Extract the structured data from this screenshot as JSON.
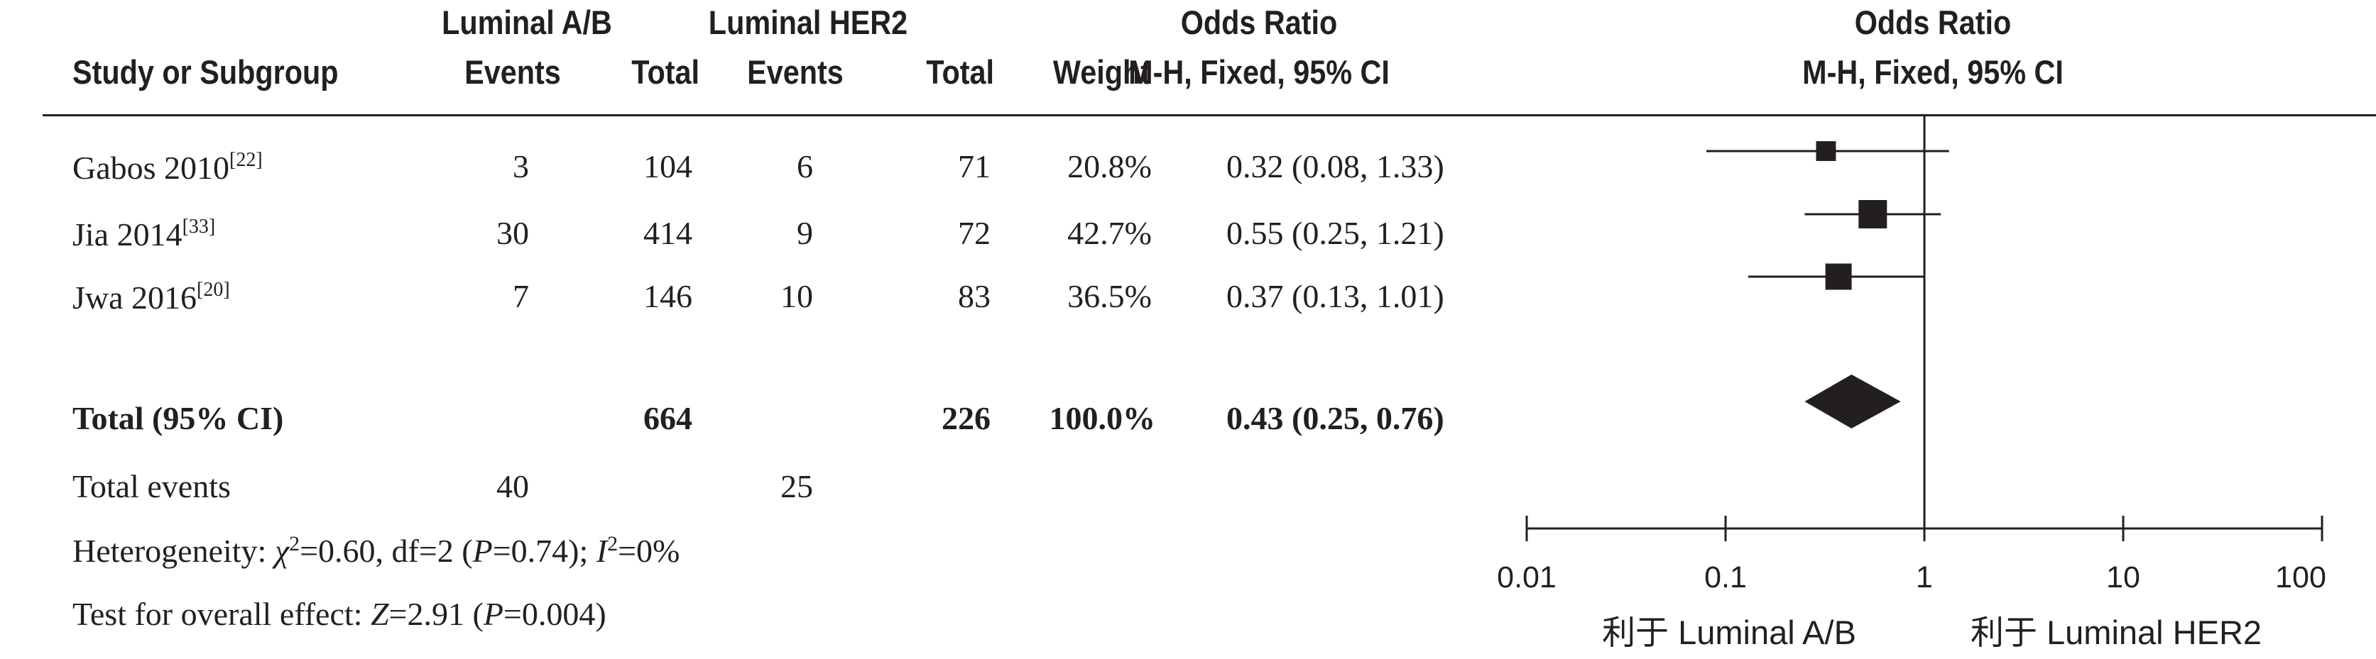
{
  "headers": {
    "group1": "Luminal A/B",
    "group2": "Luminal HER2",
    "study_col": "Study or Subgroup",
    "events": "Events",
    "total": "Total",
    "weight": "Weight",
    "or_title": "Odds Ratio",
    "or_method": "M-H, Fixed, 95% CI",
    "plot_title": "Odds Ratio",
    "plot_method": "M-H, Fixed, 95% CI"
  },
  "studies": [
    {
      "name": "Gabos 2010",
      "ref": "[22]",
      "events1": "3",
      "total1": "104",
      "events2": "6",
      "total2": "71",
      "weight": "20.8%",
      "ci_text": "0.32 (0.08, 1.33)"
    },
    {
      "name": "Jia 2014",
      "ref": "[33]",
      "events1": "30",
      "total1": "414",
      "events2": "9",
      "total2": "72",
      "weight": "42.7%",
      "ci_text": "0.55 (0.25, 1.21)"
    },
    {
      "name": "Jwa 2016",
      "ref": "[20]",
      "events1": "7",
      "total1": "146",
      "events2": "10",
      "total2": "83",
      "weight": "36.5%",
      "ci_text": "0.37 (0.13, 1.01)"
    }
  ],
  "total": {
    "label": "Total (95% CI)",
    "total1": "664",
    "total2": "226",
    "weight": "100.0%",
    "ci_text": "0.43 (0.25, 0.76)"
  },
  "total_events": {
    "label": "Total events",
    "events1": "40",
    "events2": "25"
  },
  "heterogeneity": {
    "label": "Heterogeneity: ",
    "chi_symbol": "χ",
    "chi_sup": "2",
    "chi_value": "=0.60, df=2 (",
    "p_symbol": "P",
    "p_value": "=0.74); ",
    "i_symbol": "I",
    "i_sup": "2",
    "i_value": "=0%"
  },
  "overall_effect": {
    "label": "Test for overall effect: ",
    "z_symbol": "Z",
    "z_value": "=2.91 (",
    "p_symbol": "P",
    "p_value": "=0.004)"
  },
  "axis": {
    "ticks": [
      "0.01",
      "0.1",
      "1",
      "10",
      "100"
    ],
    "favors_left": "利于 Luminal A/B",
    "favors_right": "利于 Luminal HER2"
  },
  "chart_data": {
    "type": "forest",
    "x_scale": "log",
    "xlim": [
      0.01,
      100
    ],
    "x_ticks": [
      0.01,
      0.1,
      1,
      10,
      100
    ],
    "reference_line": 1,
    "studies": [
      {
        "name": "Gabos 2010",
        "or": 0.32,
        "ci_low": 0.08,
        "ci_high": 1.33,
        "weight": 20.8
      },
      {
        "name": "Jia 2014",
        "or": 0.55,
        "ci_low": 0.25,
        "ci_high": 1.21,
        "weight": 42.7
      },
      {
        "name": "Jwa 2016",
        "or": 0.37,
        "ci_low": 0.13,
        "ci_high": 1.01,
        "weight": 36.5
      }
    ],
    "pooled": {
      "name": "Total (95% CI)",
      "or": 0.43,
      "ci_low": 0.25,
      "ci_high": 0.76
    }
  }
}
